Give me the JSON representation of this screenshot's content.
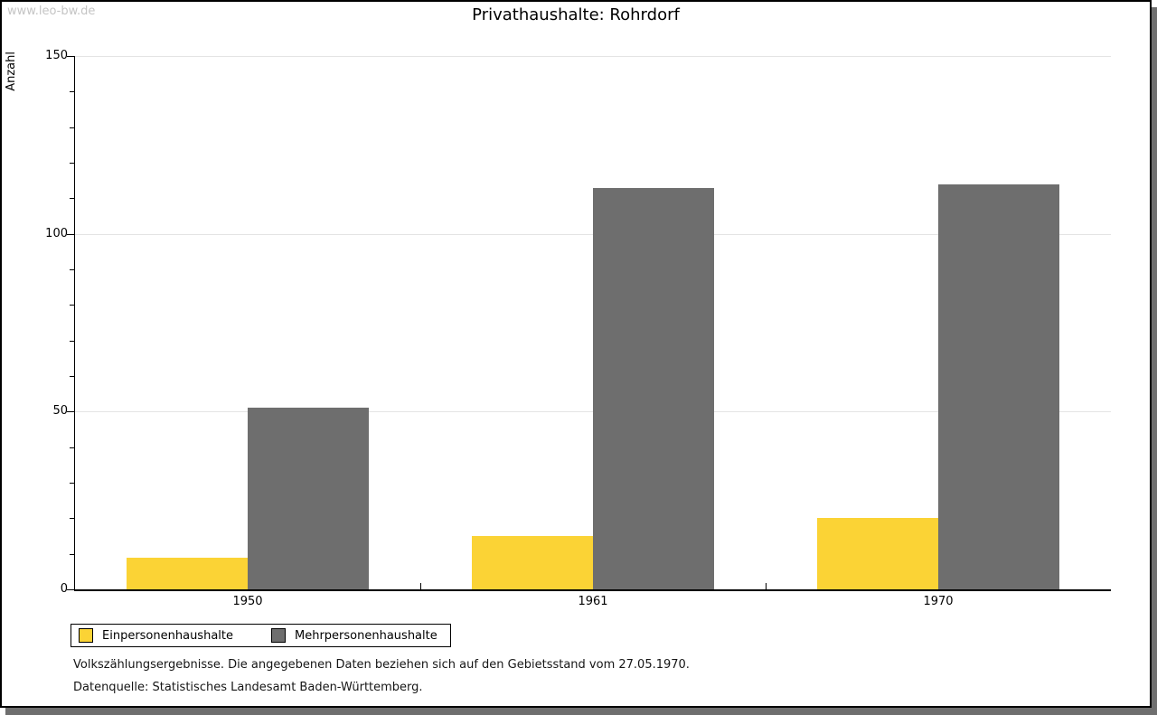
{
  "watermark": "www.leo-bw.de",
  "title": "Privathaushalte: Rohrdorf",
  "chart_data": {
    "type": "bar",
    "title": "Privathaushalte: Rohrdorf",
    "categories": [
      "1950",
      "1961",
      "1970"
    ],
    "series": [
      {
        "name": "Einpersonenhaushalte",
        "color": "#fbd335",
        "values": [
          9,
          15,
          20
        ]
      },
      {
        "name": "Mehrpersonenhaushalte",
        "color": "#6e6e6e",
        "values": [
          51,
          113,
          114
        ]
      }
    ],
    "xlabel": "",
    "ylabel": "Anzahl",
    "ylim": [
      0,
      150
    ],
    "yticks": [
      0,
      50,
      100,
      150
    ],
    "minor_tick_step": 10,
    "grid": true,
    "legend_position": "bottom-left"
  },
  "footnotes": [
    "Volkszählungsergebnisse. Die angegebenen Daten beziehen sich auf den Gebietsstand vom 27.05.1970.",
    "Datenquelle: Statistisches Landesamt Baden-Württemberg."
  ]
}
